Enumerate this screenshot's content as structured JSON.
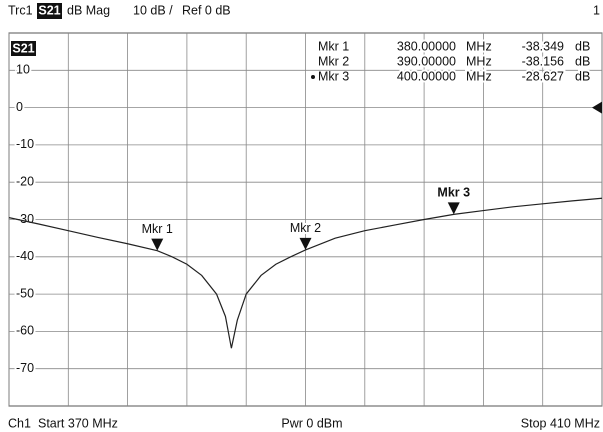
{
  "header": {
    "trace": "Trc1",
    "param": "S21",
    "format": "dB Mag",
    "scale": "10 dB /",
    "ref": "Ref 0 dB",
    "window": "1"
  },
  "footer": {
    "channel": "Ch1",
    "start": "Start 370 MHz",
    "power": "Pwr 0 dBm",
    "stop": "Stop 410 MHz"
  },
  "chart_data": {
    "type": "line",
    "badge": "S21",
    "color": "#222222",
    "x": [
      370,
      372,
      374,
      376,
      378,
      380,
      381,
      382,
      383,
      384,
      384.6,
      385,
      385.4,
      386,
      387,
      388,
      389,
      390,
      392,
      394,
      396,
      398,
      400,
      402,
      404,
      406,
      408,
      410
    ],
    "values": [
      -29.5,
      -31.2,
      -33,
      -34.8,
      -36.5,
      -38.35,
      -40,
      -42,
      -45,
      -50,
      -56,
      -64.5,
      -57,
      -50,
      -45,
      -42,
      -40,
      -38.16,
      -35,
      -33,
      -31.5,
      -30,
      -28.63,
      -27.6,
      -26.6,
      -25.8,
      -25,
      -24.3
    ],
    "xlim": [
      370,
      410
    ],
    "xticks": [
      370,
      374,
      378,
      382,
      386,
      390,
      394,
      398,
      402,
      406,
      410
    ],
    "ylim": [
      -80,
      20
    ],
    "yticks": [
      10,
      0,
      -10,
      -20,
      -30,
      -40,
      -50,
      -60,
      -70
    ],
    "ref_level": 0,
    "grid": true,
    "markers": {
      "names": [
        "Mkr 1",
        "Mkr 2",
        "Mkr 3"
      ],
      "x": [
        380,
        390,
        400
      ],
      "x_labels": [
        "380.00000",
        "390.00000",
        "400.00000"
      ],
      "values": [
        -38.349,
        -38.156,
        -28.627
      ],
      "x_unit": "MHz",
      "unit": "dB",
      "active": 2
    }
  }
}
